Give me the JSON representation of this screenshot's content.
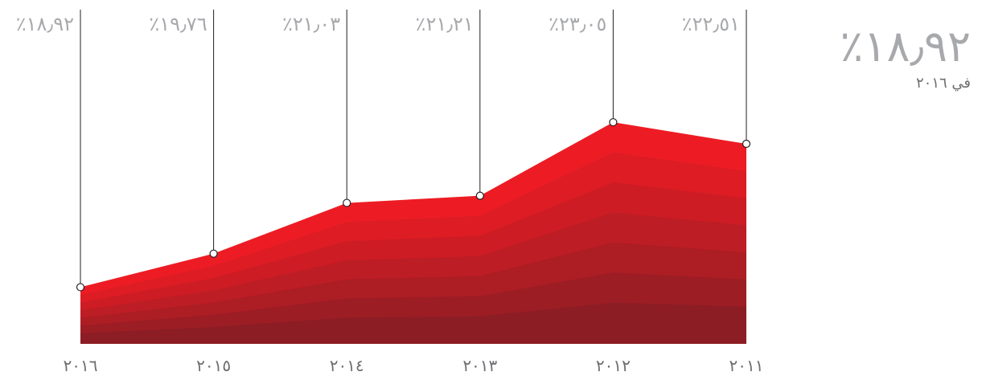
{
  "chart_data": {
    "type": "area",
    "x": [
      "٢٠١٦",
      "٢٠١٥",
      "٢٠١٤",
      "٢٠١٣",
      "٢٠١٢",
      "٢٠١١"
    ],
    "values": [
      18.92,
      19.76,
      21.03,
      21.21,
      23.05,
      22.51
    ],
    "value_labels": [
      "٪١٨٫٩٢",
      "٪١٩٫٧٦",
      "٪٢١٫٠٣",
      "٪٢١٫٢١",
      "٪٢٣٫٠٥",
      "٪٢٢٫٥١"
    ],
    "ylim": [
      17.5,
      24.1
    ],
    "x_direction": "right-to-left",
    "colors": {
      "top": "#ed1c24",
      "bottom": "#8c1d24",
      "leader_line": "#231f20",
      "marker_fill": "#ffffff"
    }
  },
  "callout": {
    "value": "٪١٨٫٩٢",
    "caption": "في ٢٠١٦"
  }
}
